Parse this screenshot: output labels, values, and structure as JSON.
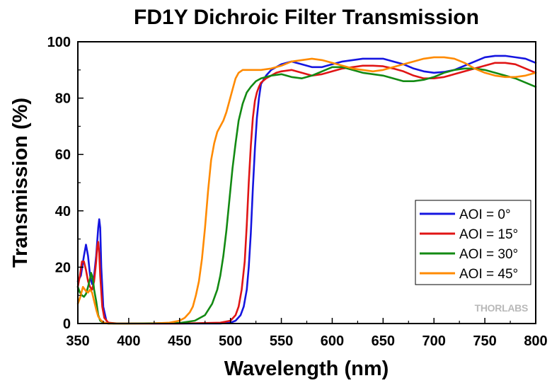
{
  "chart_data": {
    "type": "line",
    "title": "FD1Y Dichroic Filter Transmission",
    "xlabel": "Wavelength (nm)",
    "ylabel": "Transmission (%)",
    "xlim": [
      350,
      800
    ],
    "ylim": [
      0,
      100
    ],
    "xticks": [
      350,
      400,
      450,
      500,
      550,
      600,
      650,
      700,
      750,
      800
    ],
    "yticks": [
      0,
      20,
      40,
      60,
      80,
      100
    ],
    "grid": false,
    "legend_position": "right",
    "watermark": "THORLABS",
    "series": [
      {
        "name": "AOI = 0°",
        "color": "#1515e0",
        "x": [
          350,
          353,
          356,
          358,
          360,
          362,
          364,
          366,
          368,
          370,
          371,
          372,
          373,
          375,
          378,
          380,
          385,
          400,
          450,
          490,
          500,
          505,
          510,
          513,
          516,
          518,
          520,
          522,
          524,
          526,
          528,
          530,
          535,
          540,
          545,
          550,
          560,
          570,
          580,
          590,
          600,
          610,
          620,
          630,
          640,
          650,
          660,
          670,
          680,
          690,
          700,
          710,
          720,
          730,
          740,
          750,
          760,
          770,
          780,
          790,
          800
        ],
        "y": [
          15,
          17,
          24,
          28,
          24,
          17,
          14,
          17,
          24,
          34,
          37,
          34,
          20,
          6,
          1,
          0.3,
          0,
          0,
          0,
          0,
          0.3,
          1,
          3,
          6,
          12,
          20,
          32,
          48,
          62,
          73,
          80,
          85,
          88,
          90,
          91,
          92,
          93,
          92,
          91,
          91,
          92,
          93,
          93.5,
          94,
          94,
          94,
          93,
          92,
          90.5,
          89.5,
          89,
          89.3,
          90,
          91.5,
          93,
          94.5,
          95,
          95,
          94.5,
          94,
          92.5
        ]
      },
      {
        "name": "AOI = 15°",
        "color": "#e01515",
        "x": [
          350,
          352,
          354,
          356,
          358,
          360,
          362,
          364,
          366,
          368,
          369,
          370,
          371,
          372,
          374,
          376,
          380,
          390,
          450,
          490,
          500,
          505,
          508,
          511,
          514,
          516,
          518,
          520,
          522,
          524,
          526,
          528,
          530,
          535,
          540,
          545,
          550,
          560,
          570,
          580,
          590,
          600,
          610,
          620,
          630,
          640,
          650,
          660,
          670,
          680,
          690,
          700,
          710,
          720,
          730,
          740,
          750,
          760,
          770,
          780,
          790,
          800
        ],
        "y": [
          13,
          17,
          22,
          22,
          19,
          15,
          13,
          12,
          15,
          22,
          27,
          29,
          25,
          17,
          6,
          2,
          0.3,
          0,
          0,
          0.3,
          1,
          3,
          6,
          12,
          22,
          35,
          50,
          63,
          73,
          79,
          82,
          84,
          85.5,
          87,
          88,
          89,
          89.5,
          90,
          89,
          88,
          88.5,
          89.5,
          90.5,
          91,
          91.5,
          91.5,
          91.3,
          90.5,
          89.5,
          88,
          87,
          87,
          87.5,
          88.5,
          89.5,
          90.5,
          91.5,
          92.5,
          92.5,
          92,
          90.5,
          89
        ]
      },
      {
        "name": "AOI = 30°",
        "color": "#138a13",
        "x": [
          350,
          352,
          354,
          356,
          358,
          360,
          362,
          363,
          364,
          365,
          366,
          368,
          370,
          372,
          375,
          380,
          400,
          450,
          465,
          475,
          482,
          487,
          490,
          493,
          496,
          499,
          502,
          505,
          508,
          512,
          516,
          520,
          525,
          530,
          535,
          540,
          550,
          560,
          570,
          580,
          590,
          600,
          610,
          620,
          630,
          640,
          650,
          660,
          670,
          680,
          690,
          700,
          710,
          720,
          730,
          740,
          750,
          760,
          770,
          780,
          790,
          800
        ],
        "y": [
          13,
          11,
          10,
          9.5,
          10.5,
          13,
          16,
          18,
          17,
          15,
          12,
          8,
          3,
          1,
          0.3,
          0,
          0,
          0.2,
          1,
          3,
          7,
          12,
          17,
          24,
          33,
          44,
          55,
          64,
          72,
          78,
          82,
          84,
          86,
          87,
          87.5,
          88,
          88.5,
          87.5,
          87,
          88,
          89.5,
          91,
          91,
          90,
          89,
          88.5,
          88,
          87,
          86,
          86,
          86.5,
          87.5,
          89,
          90,
          90.5,
          90.5,
          90,
          89,
          88,
          87,
          85.5,
          84
        ]
      },
      {
        "name": "AOI = 45°",
        "color": "#ff8a00",
        "x": [
          350,
          352,
          355,
          358,
          360,
          362,
          364,
          366,
          368,
          370,
          373,
          376,
          380,
          390,
          420,
          440,
          450,
          455,
          460,
          463,
          466,
          469,
          472,
          475,
          478,
          481,
          484,
          487,
          490,
          493,
          496,
          499,
          502,
          505,
          508,
          512,
          516,
          520,
          530,
          540,
          550,
          560,
          570,
          580,
          590,
          600,
          610,
          620,
          630,
          640,
          650,
          660,
          670,
          680,
          690,
          700,
          710,
          720,
          730,
          740,
          750,
          760,
          770,
          780,
          790,
          800
        ],
        "y": [
          7,
          9,
          13,
          11.5,
          11,
          12,
          11,
          8,
          5,
          2.5,
          1,
          0.3,
          0,
          0,
          0,
          0.3,
          1,
          2,
          4,
          6,
          10,
          15,
          23,
          34,
          47,
          58,
          64,
          68,
          70,
          72,
          75,
          79,
          83,
          87,
          89,
          90,
          90,
          90,
          90,
          90.5,
          91.5,
          93,
          93.5,
          94,
          93.5,
          92.5,
          91.5,
          90.5,
          90,
          89.5,
          90,
          91,
          92,
          93,
          94,
          94.5,
          94.5,
          94,
          92.5,
          90.5,
          89,
          88,
          87.5,
          87.5,
          88,
          89
        ]
      }
    ]
  }
}
